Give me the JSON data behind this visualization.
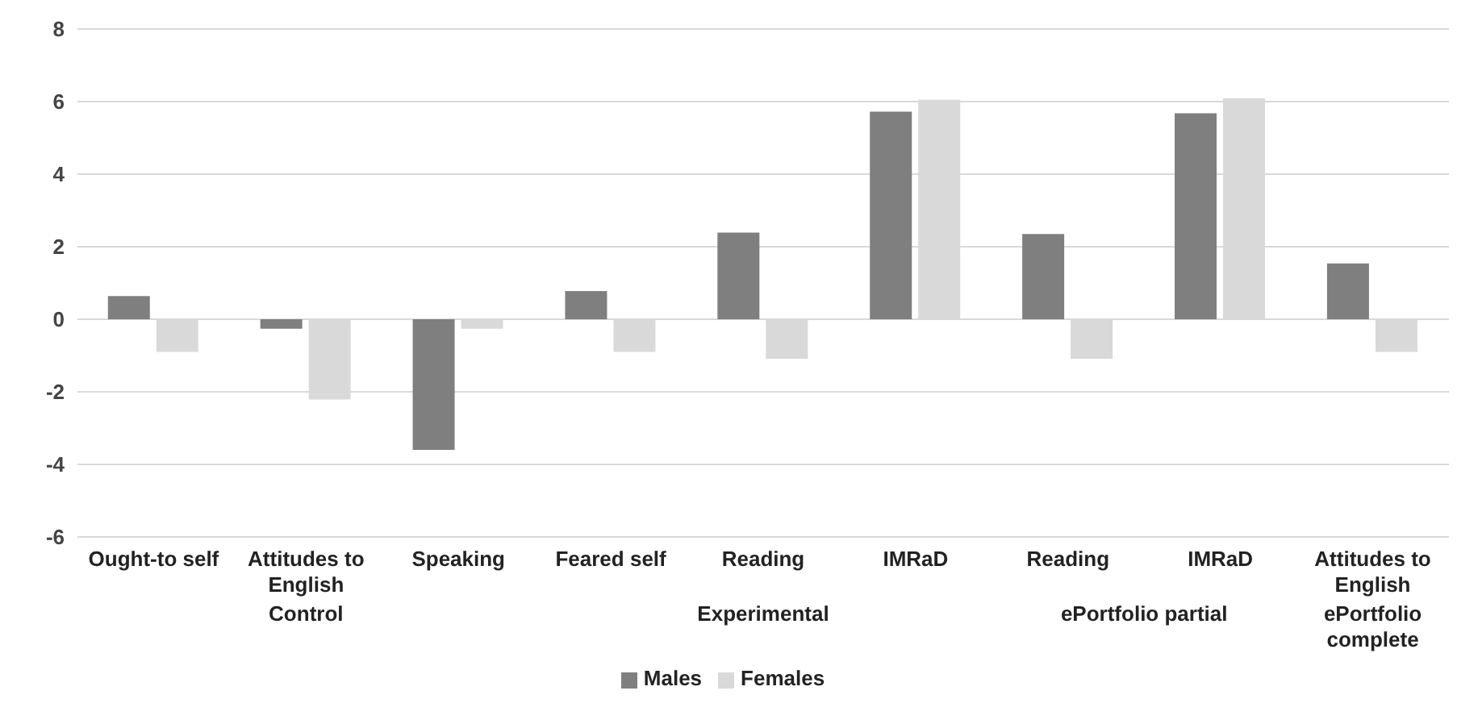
{
  "chart_data": {
    "type": "bar",
    "categories": [
      "Ought-to self",
      "Attitudes to English",
      "Speaking",
      "Feared self",
      "Reading",
      "IMRaD",
      "Reading",
      "IMRaD",
      "Attitudes to English"
    ],
    "series": [
      {
        "name": "Males",
        "color": "#7f7f7f",
        "values": [
          0.64,
          -0.26,
          -3.6,
          0.78,
          2.39,
          5.72,
          2.35,
          5.68,
          1.54
        ]
      },
      {
        "name": "Females",
        "color": "#d9d9d9",
        "values": [
          -0.9,
          -2.21,
          -0.26,
          -0.9,
          -1.09,
          6.05,
          -1.09,
          6.09,
          -0.9
        ]
      }
    ],
    "annotations": [
      "Control",
      "Experimental",
      "ePortfolio partial",
      "ePortfolio complete"
    ],
    "ylim": [
      -6,
      8
    ],
    "yticks": [
      -6,
      -4,
      -2,
      0,
      2,
      4,
      6,
      8
    ],
    "grid": "y",
    "legend": "bottom"
  }
}
